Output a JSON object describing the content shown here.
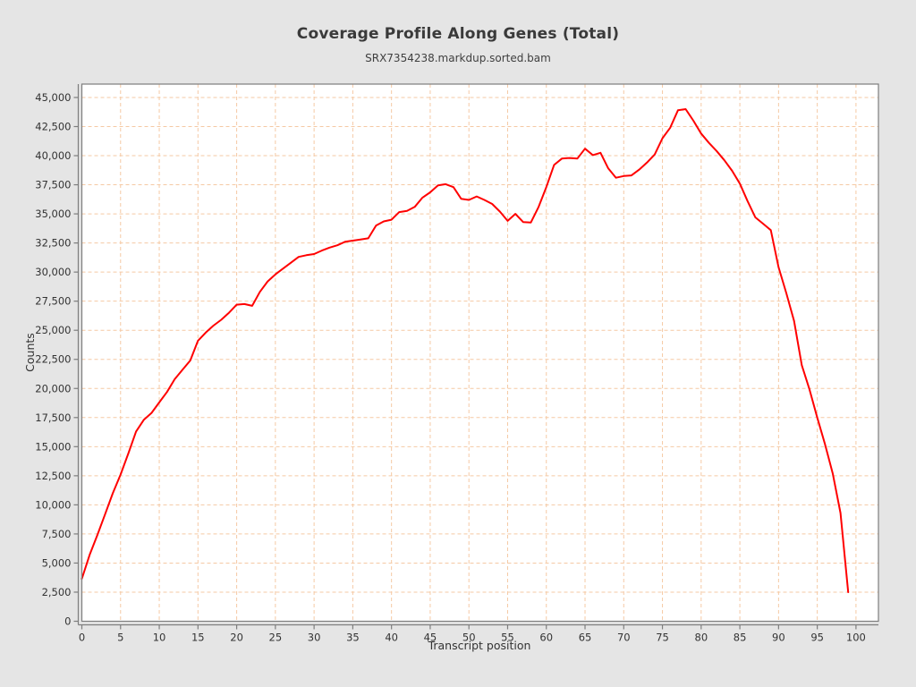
{
  "window": {
    "background_color": "#e5e5e5",
    "plot_background_color": "#ffffff"
  },
  "chart_data": {
    "type": "line",
    "title": "Coverage Profile Along Genes (Total)",
    "subtitle": "SRX7354238.markdup.sorted.bam",
    "xlabel": "Transcript position",
    "ylabel": "Counts",
    "grid": true,
    "grid_color": "#f5c9a4",
    "frame_color": "#7d7d7d",
    "tick_label_color": "#333333",
    "legend_position": "none",
    "xlim": [
      0,
      102.9
    ],
    "ylim": [
      0,
      46150
    ],
    "xticks": [
      0,
      5,
      10,
      15,
      20,
      25,
      30,
      35,
      40,
      45,
      50,
      55,
      60,
      65,
      70,
      75,
      80,
      85,
      90,
      95,
      100
    ],
    "yticks": [
      0,
      2500,
      5000,
      7500,
      10000,
      12500,
      15000,
      17500,
      20000,
      22500,
      25000,
      27500,
      30000,
      32500,
      35000,
      37500,
      40000,
      42500,
      45000
    ],
    "x": [
      0,
      1,
      2,
      3,
      4,
      5,
      6,
      7,
      8,
      9,
      10,
      11,
      12,
      13,
      14,
      15,
      16,
      17,
      18,
      19,
      20,
      21,
      22,
      23,
      24,
      25,
      26,
      27,
      28,
      29,
      30,
      31,
      32,
      33,
      34,
      35,
      36,
      37,
      38,
      39,
      40,
      41,
      42,
      43,
      44,
      45,
      46,
      47,
      48,
      49,
      50,
      51,
      52,
      53,
      54,
      55,
      56,
      57,
      58,
      59,
      60,
      61,
      62,
      63,
      64,
      65,
      66,
      67,
      68,
      69,
      70,
      71,
      72,
      73,
      74,
      75,
      76,
      77,
      78,
      79,
      80,
      81,
      82,
      83,
      84,
      85,
      86,
      87,
      88,
      89,
      90,
      91,
      92,
      93,
      94,
      95,
      96,
      97,
      98,
      99
    ],
    "series": [
      {
        "name": "SRX7354238.markdup.sorted.bam",
        "color": "#ff0000",
        "values": [
          3650,
          5700,
          7400,
          9200,
          11000,
          12600,
          14400,
          16300,
          17300,
          17900,
          18800,
          19700,
          20800,
          21600,
          22400,
          24100,
          24800,
          25400,
          25900,
          26500,
          27200,
          27250,
          27100,
          28300,
          29200,
          29800,
          30300,
          30800,
          31300,
          31450,
          31550,
          31850,
          32100,
          32300,
          32600,
          32700,
          32800,
          32900,
          34000,
          34350,
          34500,
          35150,
          35250,
          35600,
          36400,
          36850,
          37450,
          37550,
          37300,
          36300,
          36200,
          36500,
          36200,
          35850,
          35200,
          34400,
          35000,
          34300,
          34250,
          35600,
          37300,
          39200,
          39750,
          39800,
          39750,
          40600,
          40050,
          40250,
          38900,
          38100,
          38250,
          38300,
          38800,
          39400,
          40100,
          41500,
          42400,
          43900,
          44000,
          43000,
          41900,
          41100,
          40400,
          39600,
          38700,
          37600,
          36100,
          34700,
          34150,
          33600,
          30400,
          28200,
          25800,
          22000,
          19900,
          17500,
          15200,
          12700,
          9300,
          2500
        ]
      }
    ]
  }
}
